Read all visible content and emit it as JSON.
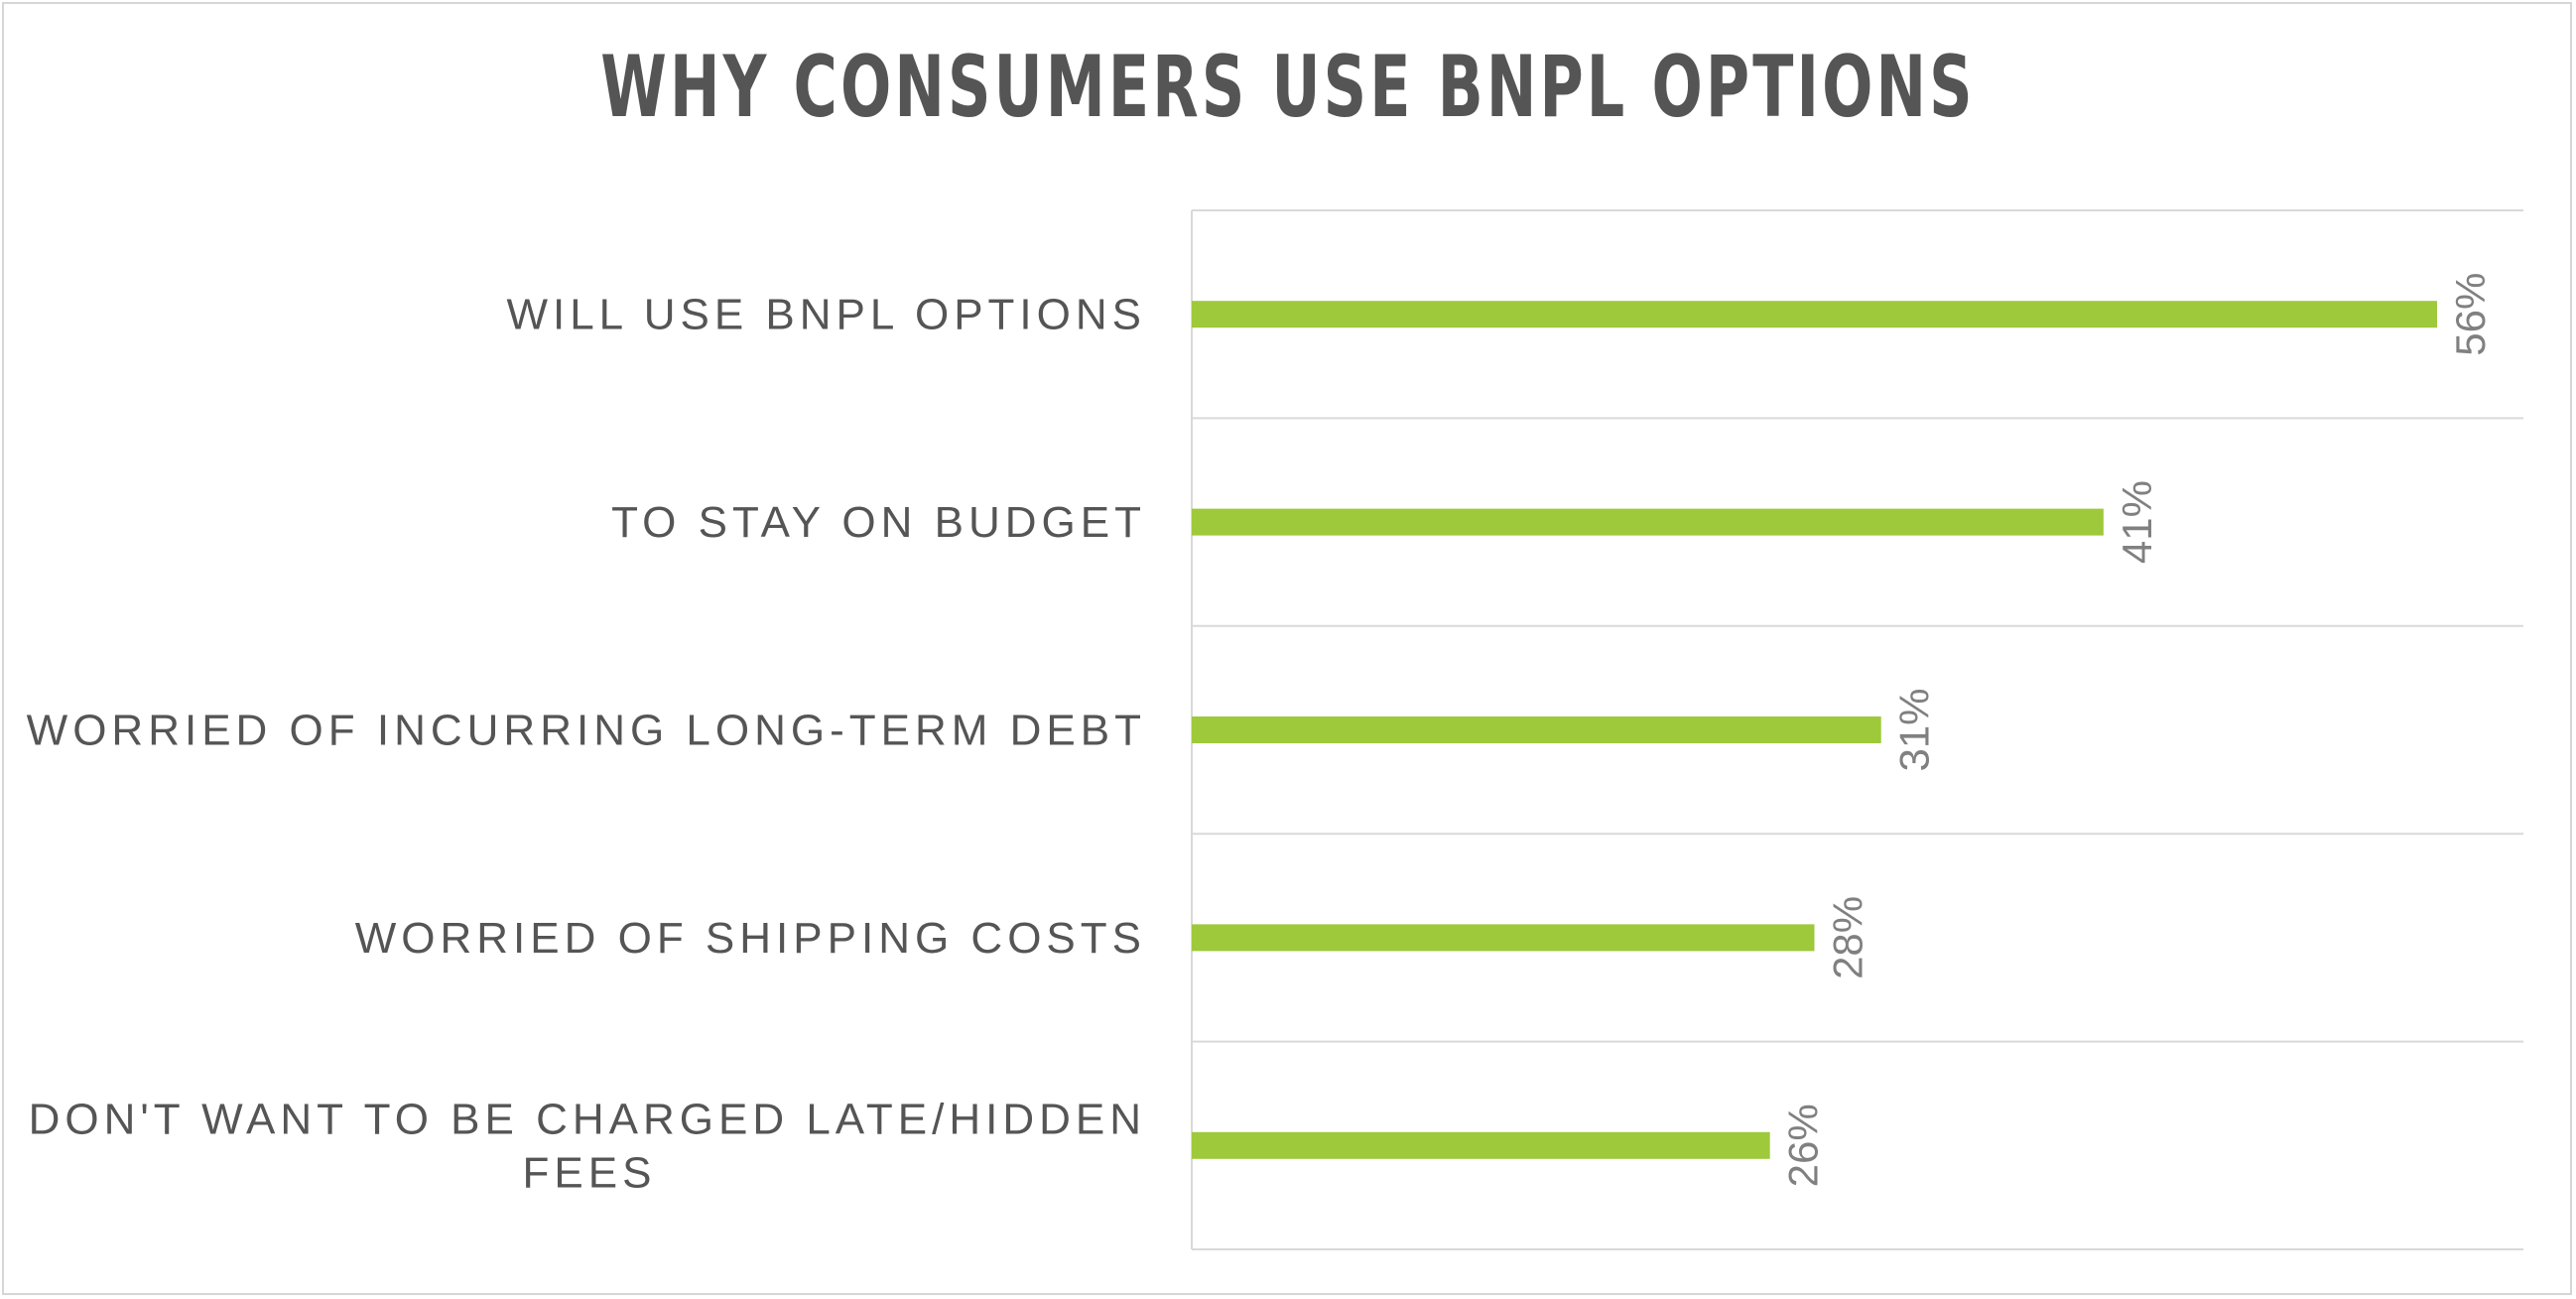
{
  "chart_data": {
    "type": "bar",
    "orientation": "horizontal",
    "title": "WHY CONSUMERS USE BNPL OPTIONS",
    "categories": [
      "WILL USE BNPL OPTIONS",
      "TO STAY ON BUDGET",
      "WORRIED OF INCURRING LONG-TERM DEBT",
      "WORRIED OF SHIPPING COSTS",
      "DON'T WANT TO BE CHARGED LATE/HIDDEN FEES"
    ],
    "category_lines": [
      [
        "WILL USE BNPL OPTIONS"
      ],
      [
        "TO STAY ON BUDGET"
      ],
      [
        "WORRIED OF INCURRING LONG-TERM DEBT"
      ],
      [
        "WORRIED OF SHIPPING COSTS"
      ],
      [
        "DON'T WANT TO BE CHARGED LATE/HIDDEN",
        "FEES"
      ]
    ],
    "values": [
      56,
      41,
      31,
      28,
      26
    ],
    "data_labels": [
      "56%",
      "41%",
      "31%",
      "28%",
      "26%"
    ],
    "xlim": [
      0,
      60
    ],
    "grid": true,
    "bar_color": "#9dc93b",
    "grid_color": "#d9d9d9"
  }
}
